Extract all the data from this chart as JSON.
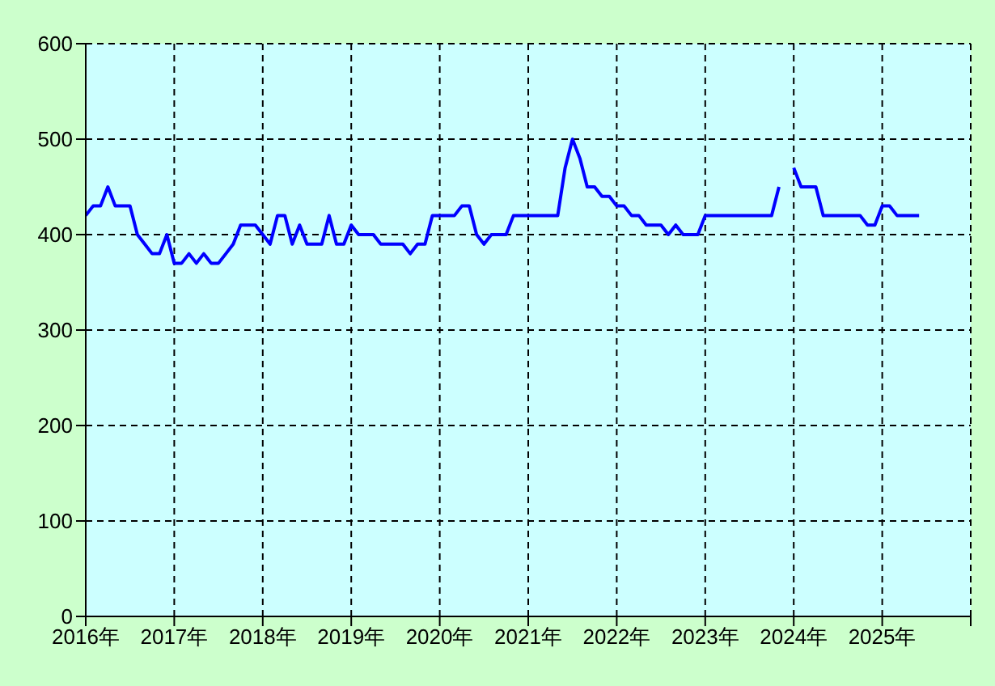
{
  "chart_data": {
    "type": "line",
    "color": "#0000ff",
    "grid": true,
    "x": [
      "2016-01",
      "2016-02",
      "2016-03",
      "2016-04",
      "2016-05",
      "2016-06",
      "2016-07",
      "2016-08",
      "2016-09",
      "2016-10",
      "2016-11",
      "2016-12",
      "2017-01",
      "2017-02",
      "2017-03",
      "2017-04",
      "2017-05",
      "2017-06",
      "2017-07",
      "2017-08",
      "2017-09",
      "2017-10",
      "2017-11",
      "2017-12",
      "2018-01",
      "2018-02",
      "2018-03",
      "2018-04",
      "2018-05",
      "2018-06",
      "2018-07",
      "2018-08",
      "2018-09",
      "2018-10",
      "2018-11",
      "2018-12",
      "2019-01",
      "2019-02",
      "2019-03",
      "2019-04",
      "2019-05",
      "2019-06",
      "2019-07",
      "2019-08",
      "2019-09",
      "2019-10",
      "2019-11",
      "2019-12",
      "2020-01",
      "2020-02",
      "2020-03",
      "2020-04",
      "2020-05",
      "2020-06",
      "2020-07",
      "2020-08",
      "2020-09",
      "2020-10",
      "2020-11",
      "2020-12",
      "2021-01",
      "2021-02",
      "2021-03",
      "2021-04",
      "2021-05",
      "2021-06",
      "2021-07",
      "2021-08",
      "2021-09",
      "2021-10",
      "2021-11",
      "2021-12",
      "2022-01",
      "2022-02",
      "2022-03",
      "2022-04",
      "2022-05",
      "2022-06",
      "2022-07",
      "2022-08",
      "2022-09",
      "2022-10",
      "2022-11",
      "2022-12",
      "2023-01",
      "2023-02",
      "2023-03",
      "2023-04",
      "2023-05",
      "2023-06",
      "2023-07",
      "2023-08",
      "2023-09",
      "2023-10",
      "2023-11",
      "2023-12",
      "2024-01",
      "2024-02",
      "2024-03",
      "2024-04",
      "2024-05",
      "2024-06",
      "2024-07",
      "2024-08",
      "2024-09",
      "2024-10",
      "2024-11",
      "2024-12",
      "2025-01",
      "2025-02",
      "2025-03",
      "2025-04",
      "2025-05",
      "2025-06"
    ],
    "values": [
      420,
      430,
      430,
      450,
      430,
      430,
      430,
      400,
      390,
      380,
      380,
      400,
      370,
      370,
      380,
      370,
      380,
      370,
      370,
      380,
      390,
      410,
      410,
      410,
      400,
      390,
      420,
      420,
      390,
      410,
      390,
      390,
      390,
      420,
      390,
      390,
      410,
      400,
      400,
      400,
      390,
      390,
      390,
      390,
      380,
      390,
      390,
      420,
      420,
      420,
      420,
      430,
      430,
      400,
      390,
      400,
      400,
      400,
      420,
      420,
      420,
      420,
      420,
      420,
      420,
      470,
      500,
      480,
      450,
      450,
      440,
      440,
      430,
      430,
      420,
      420,
      410,
      410,
      410,
      400,
      410,
      400,
      400,
      400,
      420,
      420,
      420,
      420,
      420,
      420,
      420,
      420,
      420,
      420,
      450,
      null,
      470,
      450,
      450,
      450,
      420,
      420,
      420,
      420,
      420,
      420,
      410,
      410,
      430,
      430,
      420,
      420,
      420,
      420
    ],
    "xlim": [
      "2016-01",
      "2026-01"
    ],
    "xticks": [
      {
        "value": "2016-01",
        "label": "2016年"
      },
      {
        "value": "2017-01",
        "label": "2017年"
      },
      {
        "value": "2018-01",
        "label": "2018年"
      },
      {
        "value": "2019-01",
        "label": "2019年"
      },
      {
        "value": "2020-01",
        "label": "2020年"
      },
      {
        "value": "2021-01",
        "label": "2021年"
      },
      {
        "value": "2022-01",
        "label": "2022年"
      },
      {
        "value": "2023-01",
        "label": "2023年"
      },
      {
        "value": "2024-01",
        "label": "2024年"
      },
      {
        "value": "2025-01",
        "label": "2025年"
      },
      {
        "value": "2026-01",
        "label": null
      }
    ],
    "ylim": [
      0,
      600
    ],
    "yticks": [
      0,
      100,
      200,
      300,
      400,
      500,
      600
    ]
  }
}
